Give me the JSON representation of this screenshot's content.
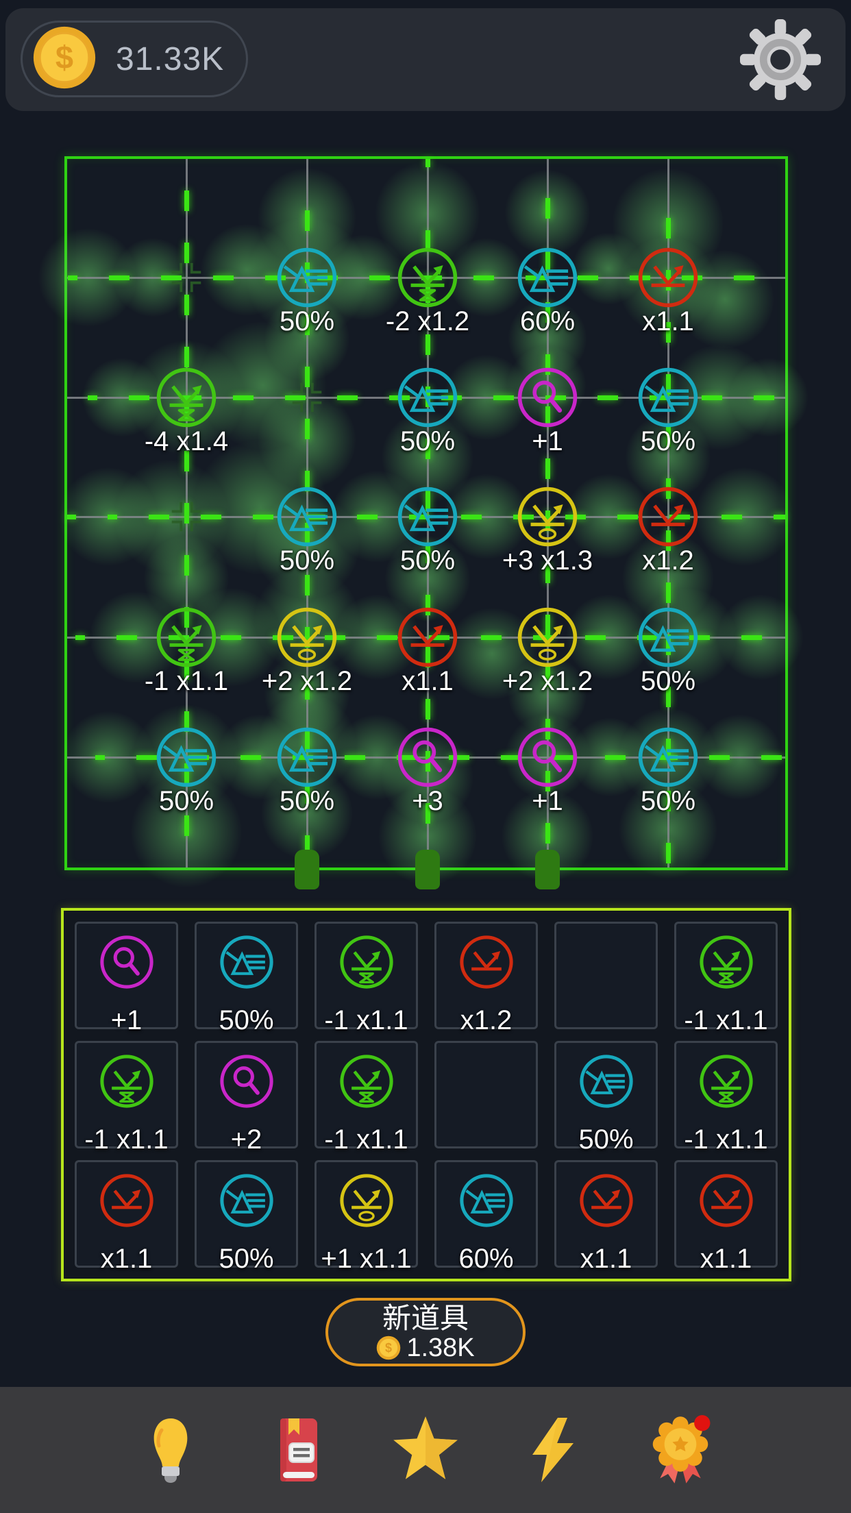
{
  "topbar": {
    "coins": "31.33K",
    "coin_symbol": "$"
  },
  "palette": {
    "cyan": "#17a9bd",
    "green": "#41c513",
    "red": "#d12b10",
    "yellow": "#d6c414",
    "magenta": "#c926c9",
    "board_border": "#2fd313",
    "inventory_border": "#b6e51c",
    "dash_green": "#3be415",
    "peg_green": "#2e7a12",
    "accent_orange": "#e2951d",
    "coin_gold": "#f9c93f"
  },
  "board": {
    "rows": 5,
    "cols": 5,
    "grid": [
      [
        null,
        {
          "variant": "cyan-prism",
          "label": "50%"
        },
        {
          "variant": "green-bouncer",
          "label": "-2 x1.2"
        },
        {
          "variant": "cyan-prism",
          "label": "60%"
        },
        {
          "variant": "red-bouncer",
          "label": "x1.1"
        }
      ],
      [
        {
          "variant": "green-bouncer",
          "label": "-4 x1.4"
        },
        null,
        {
          "variant": "cyan-prism",
          "label": "50%"
        },
        {
          "variant": "magenta-magnifier",
          "label": "+1"
        },
        {
          "variant": "cyan-prism",
          "label": "50%"
        }
      ],
      [
        null,
        {
          "variant": "cyan-prism",
          "label": "50%"
        },
        {
          "variant": "cyan-prism",
          "label": "50%"
        },
        {
          "variant": "yellow-bouncer",
          "label": "+3 x1.3"
        },
        {
          "variant": "red-bouncer",
          "label": "x1.2"
        }
      ],
      [
        {
          "variant": "green-bouncer",
          "label": "-1 x1.1"
        },
        {
          "variant": "yellow-bouncer",
          "label": "+2 x1.2"
        },
        {
          "variant": "red-bouncer",
          "label": "x1.1"
        },
        {
          "variant": "yellow-bouncer",
          "label": "+2 x1.2"
        },
        {
          "variant": "cyan-prism",
          "label": "50%"
        }
      ],
      [
        {
          "variant": "cyan-prism",
          "label": "50%"
        },
        {
          "variant": "cyan-prism",
          "label": "50%"
        },
        {
          "variant": "magenta-magnifier",
          "label": "+3"
        },
        {
          "variant": "magenta-magnifier",
          "label": "+1"
        },
        {
          "variant": "cyan-prism",
          "label": "50%"
        }
      ]
    ],
    "empty_markers": [
      [
        0,
        0
      ],
      [
        1,
        1
      ],
      [
        2,
        0
      ]
    ],
    "pegs_at_columns": [
      2,
      3,
      4
    ]
  },
  "inventory": {
    "rows": 3,
    "cols": 6,
    "slots": [
      [
        {
          "variant": "magenta-magnifier",
          "label": "+1"
        },
        {
          "variant": "cyan-prism",
          "label": "50%"
        },
        {
          "variant": "green-bouncer",
          "label": "-1 x1.1"
        },
        {
          "variant": "red-bouncer",
          "label": "x1.2"
        },
        null,
        {
          "variant": "green-bouncer",
          "label": "-1 x1.1"
        }
      ],
      [
        {
          "variant": "green-bouncer",
          "label": "-1 x1.1"
        },
        {
          "variant": "magenta-magnifier",
          "label": "+2"
        },
        {
          "variant": "green-bouncer",
          "label": "-1 x1.1"
        },
        null,
        {
          "variant": "cyan-prism",
          "label": "50%"
        },
        {
          "variant": "green-bouncer",
          "label": "-1 x1.1"
        }
      ],
      [
        {
          "variant": "red-bouncer",
          "label": "x1.1"
        },
        {
          "variant": "cyan-prism",
          "label": "50%"
        },
        {
          "variant": "yellow-bouncer",
          "label": "+1 x1.1"
        },
        {
          "variant": "cyan-prism",
          "label": "60%"
        },
        {
          "variant": "red-bouncer",
          "label": "x1.1"
        },
        {
          "variant": "red-bouncer",
          "label": "x1.1"
        }
      ]
    ]
  },
  "shop": {
    "new_item_label": "新道具",
    "new_item_cost": "1.38K"
  },
  "navbar": {
    "items": [
      {
        "name": "hint",
        "icon": "lightbulb-icon"
      },
      {
        "name": "handbook",
        "icon": "book-icon"
      },
      {
        "name": "favorites",
        "icon": "star-icon"
      },
      {
        "name": "boost",
        "icon": "lightning-icon"
      },
      {
        "name": "achievements",
        "icon": "medal-icon",
        "badge": true
      }
    ]
  }
}
